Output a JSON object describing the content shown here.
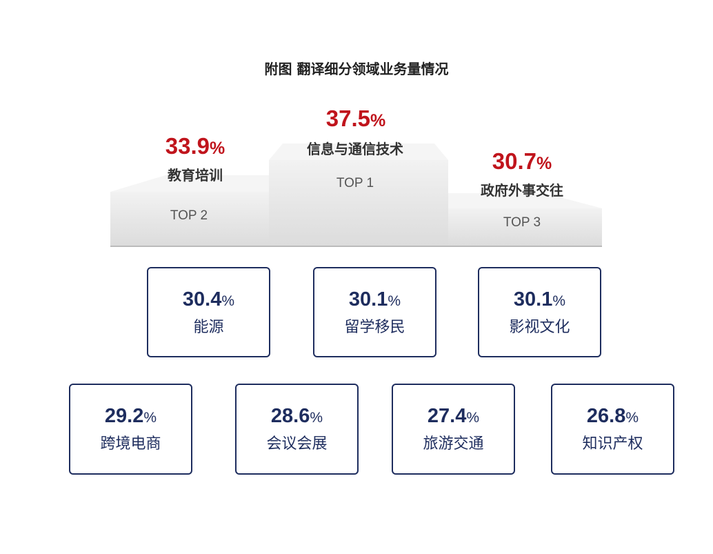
{
  "title": "附图  翻译细分领域业务量情况",
  "percent_symbol": "%",
  "colors": {
    "top_value": "#c0141c",
    "card": "#1e2d5e",
    "podium": "#e4e4e4"
  },
  "chart_data": {
    "type": "table",
    "title": "附图  翻译细分领域业务量情况",
    "top3": [
      {
        "rank": "TOP 1",
        "category": "信息与通信技术",
        "value": 37.5
      },
      {
        "rank": "TOP 2",
        "category": "教育培训",
        "value": 33.9
      },
      {
        "rank": "TOP 3",
        "category": "政府外事交往",
        "value": 30.7
      }
    ],
    "others": [
      {
        "category": "能源",
        "value": 30.4
      },
      {
        "category": "留学移民",
        "value": 30.1
      },
      {
        "category": "影视文化",
        "value": 30.1
      },
      {
        "category": "跨境电商",
        "value": 29.2
      },
      {
        "category": "会议会展",
        "value": 28.6
      },
      {
        "category": "旅游交通",
        "value": 27.4
      },
      {
        "category": "知识产权",
        "value": 26.8
      }
    ]
  }
}
